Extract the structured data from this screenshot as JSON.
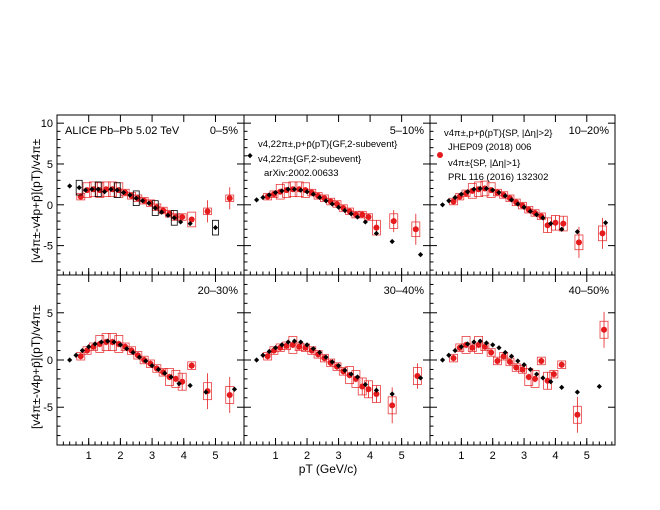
{
  "figure": {
    "y_label": "[v4π±-v4p+p̄](pT)/v4π±",
    "x_label": "pT (GeV/c)"
  },
  "legend": {
    "entry1": "v4,22π±,p+p̄(pT){GF,2-subevent}",
    "entry2": "v4,22π±{GF,2-subevent}",
    "entry2_ref": "arXiv:2002.00633",
    "entry3": "v4π±,p+p̄(pT){SP, |Δη|>2}",
    "entry3_ref": "JHEP09 (2018) 006",
    "entry4": "v4π±{SP, |Δη|>1}",
    "entry4_ref": "PRL 116 (2016) 132302"
  },
  "colors": {
    "black_series": "#000000",
    "red_series": "#e41a1c",
    "red_box": "#e41a1c",
    "black_box": "#000000"
  },
  "chart_data": {
    "type": "scatter",
    "xlim": [
      0,
      5.9
    ],
    "xticks": [
      1,
      2,
      3,
      4,
      5
    ],
    "ylim_top": [
      -8.6,
      11
    ],
    "ylim_bottom": [
      -9,
      9
    ],
    "yticks": [
      -5,
      0,
      5,
      10
    ],
    "panels": [
      {
        "label": "0–5%",
        "header": "ALICE Pb–Pb 5.02 TeV",
        "black": [
          [
            0.4,
            2.3
          ],
          [
            0.7,
            2.1
          ],
          [
            0.9,
            1.8
          ],
          [
            1.1,
            1.9
          ],
          [
            1.3,
            1.9
          ],
          [
            1.5,
            1.6
          ],
          [
            1.7,
            1.9
          ],
          [
            1.9,
            1.8
          ],
          [
            2.1,
            1.5
          ],
          [
            2.3,
            1.2
          ],
          [
            2.5,
            0.8
          ],
          [
            2.7,
            0.5
          ],
          [
            2.9,
            0.2
          ],
          [
            3.1,
            -0.4
          ],
          [
            3.3,
            -0.9
          ],
          [
            3.5,
            -1.3
          ],
          [
            3.7,
            -1.6
          ],
          [
            3.9,
            -2.1
          ],
          [
            4.2,
            -2.3
          ],
          [
            5.0,
            -2.8
          ]
        ],
        "red": [
          [
            0.75,
            1.0
          ],
          [
            0.95,
            1.8
          ],
          [
            1.15,
            1.9
          ],
          [
            1.35,
            1.8
          ],
          [
            1.55,
            1.9
          ],
          [
            1.75,
            1.9
          ],
          [
            1.95,
            1.8
          ],
          [
            2.15,
            1.5
          ],
          [
            2.35,
            1.1
          ],
          [
            2.55,
            0.8
          ],
          [
            2.75,
            0.5
          ],
          [
            2.95,
            0.2
          ],
          [
            3.15,
            -0.3
          ],
          [
            3.35,
            -0.7
          ],
          [
            3.55,
            -1.1
          ],
          [
            3.75,
            -1.5
          ],
          [
            3.95,
            -1.5
          ],
          [
            4.25,
            -1.8
          ],
          [
            4.75,
            -0.8
          ],
          [
            5.45,
            0.8
          ]
        ]
      },
      {
        "label": "5–10%",
        "black": [
          [
            0.4,
            0.6
          ],
          [
            0.6,
            0.9
          ],
          [
            0.8,
            1.2
          ],
          [
            1.0,
            1.5
          ],
          [
            1.2,
            1.7
          ],
          [
            1.4,
            1.9
          ],
          [
            1.6,
            1.9
          ],
          [
            1.8,
            1.8
          ],
          [
            2.0,
            1.6
          ],
          [
            2.2,
            1.3
          ],
          [
            2.4,
            0.9
          ],
          [
            2.6,
            0.5
          ],
          [
            2.8,
            0.1
          ],
          [
            3.0,
            -0.3
          ],
          [
            3.2,
            -0.7
          ],
          [
            3.4,
            -1.1
          ],
          [
            3.6,
            -1.5
          ],
          [
            3.85,
            -2.1
          ],
          [
            4.2,
            -3.5
          ],
          [
            4.7,
            -4.5
          ],
          [
            5.6,
            -6.1
          ]
        ],
        "red": [
          [
            0.75,
            1.0
          ],
          [
            0.95,
            1.3
          ],
          [
            1.15,
            1.6
          ],
          [
            1.35,
            1.8
          ],
          [
            1.55,
            1.9
          ],
          [
            1.75,
            1.9
          ],
          [
            1.95,
            1.8
          ],
          [
            2.15,
            1.5
          ],
          [
            2.35,
            1.1
          ],
          [
            2.55,
            0.8
          ],
          [
            2.75,
            0.4
          ],
          [
            2.95,
            0.1
          ],
          [
            3.15,
            -0.4
          ],
          [
            3.35,
            -0.8
          ],
          [
            3.55,
            -1.2
          ],
          [
            3.75,
            -1.2
          ],
          [
            3.95,
            -1.5
          ],
          [
            4.2,
            -2.8
          ],
          [
            4.75,
            -2.0
          ],
          [
            5.45,
            -3.0
          ]
        ]
      },
      {
        "label": "10–20%",
        "black": [
          [
            0.4,
            0.0
          ],
          [
            0.6,
            0.5
          ],
          [
            0.8,
            0.9
          ],
          [
            1.0,
            1.3
          ],
          [
            1.2,
            1.6
          ],
          [
            1.4,
            1.9
          ],
          [
            1.6,
            2.0
          ],
          [
            1.8,
            2.0
          ],
          [
            2.0,
            1.8
          ],
          [
            2.2,
            1.5
          ],
          [
            2.4,
            1.1
          ],
          [
            2.6,
            0.6
          ],
          [
            2.8,
            0.1
          ],
          [
            3.0,
            -0.3
          ],
          [
            3.2,
            -0.8
          ],
          [
            3.4,
            -1.2
          ],
          [
            3.6,
            -1.6
          ],
          [
            3.85,
            -2.3
          ],
          [
            4.2,
            -3.0
          ],
          [
            4.7,
            -3.3
          ],
          [
            5.6,
            -2.2
          ]
        ],
        "red": [
          [
            0.75,
            0.4
          ],
          [
            0.95,
            1.0
          ],
          [
            1.15,
            1.4
          ],
          [
            1.35,
            1.7
          ],
          [
            1.55,
            1.9
          ],
          [
            1.75,
            2.0
          ],
          [
            1.95,
            1.8
          ],
          [
            2.15,
            1.5
          ],
          [
            2.35,
            1.2
          ],
          [
            2.55,
            0.8
          ],
          [
            2.75,
            0.3
          ],
          [
            2.95,
            -0.1
          ],
          [
            3.15,
            -0.6
          ],
          [
            3.35,
            -1.0
          ],
          [
            3.55,
            -1.4
          ],
          [
            3.75,
            -2.5
          ],
          [
            4.0,
            -2.2
          ],
          [
            4.25,
            -2.3
          ],
          [
            4.75,
            -4.6
          ],
          [
            5.5,
            -3.5
          ]
        ]
      },
      {
        "label": "20–30%",
        "black": [
          [
            0.4,
            0.0
          ],
          [
            0.6,
            0.5
          ],
          [
            0.8,
            1.0
          ],
          [
            1.0,
            1.4
          ],
          [
            1.2,
            1.7
          ],
          [
            1.4,
            1.9
          ],
          [
            1.6,
            2.0
          ],
          [
            1.8,
            1.9
          ],
          [
            2.0,
            1.6
          ],
          [
            2.2,
            1.2
          ],
          [
            2.4,
            0.8
          ],
          [
            2.6,
            0.3
          ],
          [
            2.8,
            -0.1
          ],
          [
            3.0,
            -0.6
          ],
          [
            3.2,
            -1.0
          ],
          [
            3.4,
            -1.4
          ],
          [
            3.6,
            -1.8
          ],
          [
            3.85,
            -2.5
          ],
          [
            4.2,
            -2.7
          ],
          [
            4.7,
            -3.4
          ],
          [
            5.6,
            -3.1
          ]
        ],
        "red": [
          [
            0.75,
            0.4
          ],
          [
            0.95,
            1.0
          ],
          [
            1.15,
            1.4
          ],
          [
            1.35,
            1.7
          ],
          [
            1.55,
            1.9
          ],
          [
            1.75,
            1.9
          ],
          [
            1.95,
            1.7
          ],
          [
            2.15,
            1.4
          ],
          [
            2.35,
            1.0
          ],
          [
            2.55,
            0.5
          ],
          [
            2.75,
            0.0
          ],
          [
            2.95,
            -0.4
          ],
          [
            3.15,
            -0.9
          ],
          [
            3.35,
            -1.3
          ],
          [
            3.55,
            -1.8
          ],
          [
            3.75,
            -2.0
          ],
          [
            3.95,
            -2.3
          ],
          [
            4.25,
            -0.6
          ],
          [
            4.75,
            -3.3
          ],
          [
            5.45,
            -3.7
          ]
        ]
      },
      {
        "label": "30–40%",
        "black": [
          [
            0.4,
            0.0
          ],
          [
            0.6,
            0.5
          ],
          [
            0.8,
            0.9
          ],
          [
            1.0,
            1.3
          ],
          [
            1.2,
            1.6
          ],
          [
            1.4,
            1.9
          ],
          [
            1.6,
            2.0
          ],
          [
            1.8,
            1.9
          ],
          [
            2.0,
            1.6
          ],
          [
            2.2,
            1.2
          ],
          [
            2.4,
            0.8
          ],
          [
            2.6,
            0.3
          ],
          [
            2.8,
            -0.2
          ],
          [
            3.0,
            -0.6
          ],
          [
            3.2,
            -1.1
          ],
          [
            3.4,
            -1.5
          ],
          [
            3.6,
            -1.8
          ],
          [
            3.85,
            -2.6
          ],
          [
            4.2,
            -3.2
          ],
          [
            4.7,
            -3.6
          ],
          [
            5.6,
            -1.9
          ]
        ],
        "red": [
          [
            0.75,
            0.4
          ],
          [
            0.95,
            1.0
          ],
          [
            1.15,
            1.3
          ],
          [
            1.35,
            1.5
          ],
          [
            1.55,
            1.6
          ],
          [
            1.75,
            1.4
          ],
          [
            1.95,
            1.3
          ],
          [
            2.15,
            1.0
          ],
          [
            2.35,
            0.6
          ],
          [
            2.55,
            0.2
          ],
          [
            2.75,
            -0.3
          ],
          [
            2.95,
            -0.7
          ],
          [
            3.15,
            -1.2
          ],
          [
            3.35,
            -1.6
          ],
          [
            3.55,
            -2.0
          ],
          [
            3.75,
            -2.8
          ],
          [
            3.95,
            -3.1
          ],
          [
            4.2,
            -3.6
          ],
          [
            4.7,
            -4.8
          ],
          [
            5.5,
            -1.7
          ]
        ]
      },
      {
        "label": "40–50%",
        "black": [
          [
            0.4,
            0.0
          ],
          [
            0.6,
            0.5
          ],
          [
            0.8,
            1.0
          ],
          [
            1.0,
            1.4
          ],
          [
            1.2,
            1.7
          ],
          [
            1.4,
            1.9
          ],
          [
            1.6,
            2.0
          ],
          [
            1.8,
            1.8
          ],
          [
            2.0,
            1.6
          ],
          [
            2.2,
            1.3
          ],
          [
            2.4,
            0.8
          ],
          [
            2.6,
            0.4
          ],
          [
            2.8,
            -0.1
          ],
          [
            3.0,
            -0.5
          ],
          [
            3.2,
            -1.0
          ],
          [
            3.4,
            -1.5
          ],
          [
            3.6,
            -1.9
          ],
          [
            3.85,
            -2.3
          ],
          [
            4.2,
            -2.9
          ],
          [
            4.7,
            -3.4
          ],
          [
            5.4,
            -2.8
          ]
        ],
        "red": [
          [
            0.75,
            0.2
          ],
          [
            0.95,
            1.3
          ],
          [
            1.15,
            1.6
          ],
          [
            1.35,
            1.3
          ],
          [
            1.55,
            1.6
          ],
          [
            1.75,
            1.4
          ],
          [
            1.95,
            0.8
          ],
          [
            2.15,
            -0.1
          ],
          [
            2.35,
            0.4
          ],
          [
            2.55,
            -0.2
          ],
          [
            2.75,
            -0.8
          ],
          [
            2.95,
            -1.0
          ],
          [
            3.15,
            -1.8
          ],
          [
            3.35,
            -2.0
          ],
          [
            3.55,
            -0.1
          ],
          [
            3.75,
            -2.2
          ],
          [
            3.95,
            -1.5
          ],
          [
            4.2,
            -0.5
          ],
          [
            4.7,
            -5.8
          ],
          [
            5.55,
            3.2
          ]
        ]
      }
    ]
  }
}
